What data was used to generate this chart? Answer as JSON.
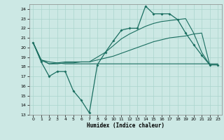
{
  "xlabel": "Humidex (Indice chaleur)",
  "background_color": "#cce8e4",
  "grid_color": "#aad4cc",
  "line_color": "#1a6e60",
  "xlim": [
    -0.5,
    23.5
  ],
  "ylim": [
    13,
    24.5
  ],
  "xticks": [
    0,
    1,
    2,
    3,
    4,
    5,
    6,
    7,
    8,
    9,
    10,
    11,
    12,
    13,
    14,
    15,
    16,
    17,
    18,
    19,
    20,
    21,
    22,
    23
  ],
  "yticks": [
    13,
    14,
    15,
    16,
    17,
    18,
    19,
    20,
    21,
    22,
    23,
    24
  ],
  "line1_x": [
    0,
    1,
    2,
    3,
    4,
    5,
    6,
    7,
    8,
    9,
    10,
    11,
    12,
    13,
    14,
    15,
    16,
    17,
    18,
    19,
    20,
    21,
    22,
    23
  ],
  "line1_y": [
    20.5,
    18.5,
    17.0,
    17.5,
    17.5,
    15.5,
    14.5,
    13.2,
    18.2,
    19.5,
    20.7,
    21.8,
    22.0,
    22.0,
    24.3,
    23.5,
    23.5,
    23.5,
    22.9,
    21.5,
    20.3,
    19.2,
    18.2,
    18.2
  ],
  "line2_x": [
    0,
    1,
    2,
    3,
    4,
    5,
    6,
    7,
    8,
    9,
    10,
    11,
    12,
    13,
    14,
    15,
    16,
    17,
    18,
    19,
    20,
    21,
    22,
    23
  ],
  "line2_y": [
    20.5,
    18.7,
    18.5,
    18.4,
    18.3,
    18.3,
    18.3,
    18.3,
    18.3,
    18.3,
    18.3,
    18.3,
    18.3,
    18.3,
    18.3,
    18.3,
    18.3,
    18.3,
    18.3,
    18.3,
    18.3,
    18.3,
    18.3,
    18.3
  ],
  "line3_x": [
    0,
    1,
    2,
    3,
    4,
    5,
    6,
    7,
    8,
    9,
    10,
    11,
    12,
    13,
    14,
    15,
    16,
    17,
    18,
    19,
    20,
    21,
    22,
    23
  ],
  "line3_y": [
    20.5,
    18.7,
    18.3,
    18.3,
    18.4,
    18.4,
    18.5,
    18.5,
    18.7,
    18.9,
    19.1,
    19.4,
    19.7,
    20.0,
    20.3,
    20.6,
    20.8,
    21.0,
    21.1,
    21.2,
    21.4,
    21.5,
    18.2,
    18.2
  ],
  "line4_x": [
    0,
    1,
    2,
    3,
    4,
    5,
    6,
    7,
    8,
    9,
    10,
    11,
    12,
    13,
    14,
    15,
    16,
    17,
    18,
    19,
    20,
    21,
    22,
    23
  ],
  "line4_y": [
    20.5,
    18.7,
    18.3,
    18.4,
    18.5,
    18.5,
    18.5,
    18.5,
    19.0,
    19.5,
    20.2,
    20.9,
    21.4,
    21.8,
    22.2,
    22.5,
    22.7,
    22.8,
    22.9,
    23.0,
    21.5,
    19.5,
    18.2,
    18.2
  ]
}
